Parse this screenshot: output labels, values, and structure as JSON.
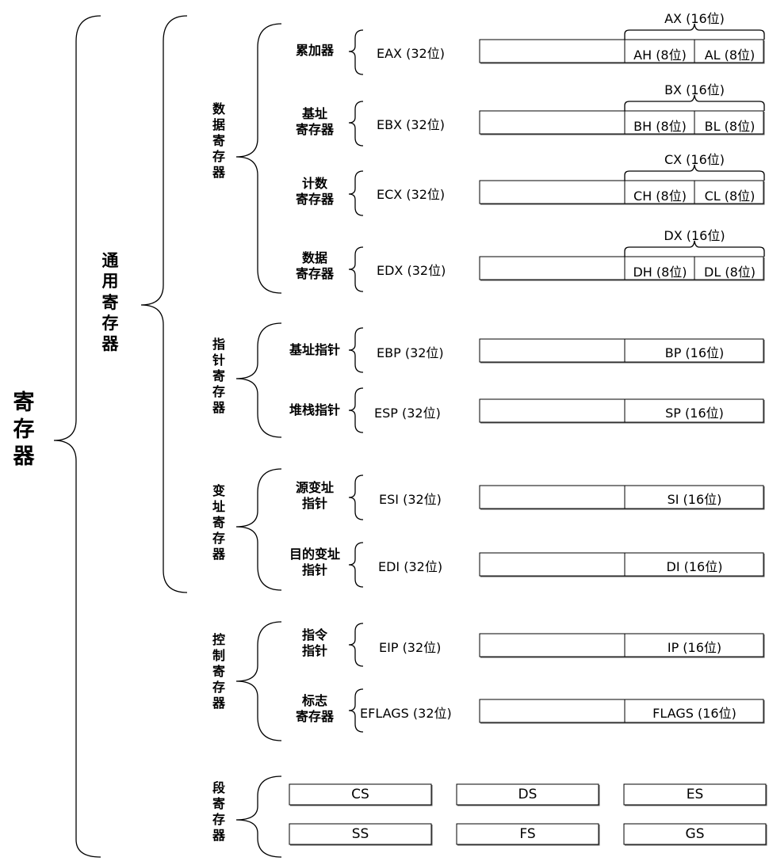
{
  "root": {
    "label": "寄\n存\n器"
  },
  "general": {
    "label": "通\n用\n寄\n存\n器"
  },
  "groups": {
    "data": {
      "label": "数\n据\n寄\n存\n器"
    },
    "pointer": {
      "label": "指\n针\n寄\n存\n器"
    },
    "index": {
      "label": "变\n址\n寄\n存\n器"
    },
    "control": {
      "label": "控\n制\n寄\n存\n器"
    },
    "segment": {
      "label": "段\n寄\n存\n器"
    }
  },
  "data_registers": [
    {
      "name": "累加器",
      "reg32": "EAX (32位)",
      "reg16": "AX (16位)",
      "high": "AH (8位)",
      "low": "AL (8位)"
    },
    {
      "name": "基址\n寄存器",
      "reg32": "EBX (32位)",
      "reg16": "BX (16位)",
      "high": "BH (8位)",
      "low": "BL (8位)"
    },
    {
      "name": "计数\n寄存器",
      "reg32": "ECX (32位)",
      "reg16": "CX (16位)",
      "high": "CH (8位)",
      "low": "CL (8位)"
    },
    {
      "name": "数据\n寄存器",
      "reg32": "EDX (32位)",
      "reg16": "DX (16位)",
      "high": "DH (8位)",
      "low": "DL (8位)"
    }
  ],
  "pointer_registers": [
    {
      "name": "基址指针",
      "reg32": "EBP (32位)",
      "reg16": "BP (16位)"
    },
    {
      "name": "堆栈指针",
      "reg32": "ESP (32位)",
      "reg16": "SP (16位)"
    }
  ],
  "index_registers": [
    {
      "name": "源变址\n指针",
      "reg32": "ESI (32位)",
      "reg16": "SI (16位)"
    },
    {
      "name": "目的变址\n指针",
      "reg32": "EDI (32位)",
      "reg16": "DI (16位)"
    }
  ],
  "control_registers": [
    {
      "name": "指令\n指针",
      "reg32": "EIP (32位)",
      "reg16": "IP (16位)"
    },
    {
      "name": "标志\n寄存器",
      "reg32": "EFLAGS (32位)",
      "reg16": "FLAGS (16位)"
    }
  ],
  "segment_registers": [
    "CS",
    "DS",
    "ES",
    "SS",
    "FS",
    "GS"
  ]
}
